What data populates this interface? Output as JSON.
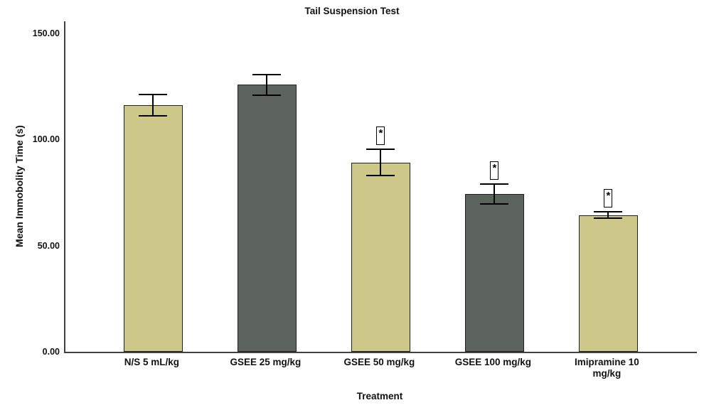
{
  "chart_data": {
    "type": "bar",
    "title": "Tail Suspension Test",
    "xlabel": "Treatment",
    "ylabel": "Mean Immobolity Time (s)",
    "categories": [
      "N/S 5 mL/kg",
      "GSEE 25 mg/kg",
      "GSEE 50 mg/kg",
      "GSEE 100 mg/kg",
      "Imipramine 10\nmg/kg"
    ],
    "values": [
      116.2,
      125.8,
      89.2,
      74.4,
      64.4
    ],
    "errors": [
      4.9,
      4.8,
      6.2,
      4.7,
      1.5
    ],
    "significance": [
      false,
      false,
      true,
      true,
      true
    ],
    "sig_symbol": "*",
    "bar_colors": [
      "#cdc88a",
      "#5b635c",
      "#cdc88a",
      "#5b635c",
      "#cdc88a"
    ],
    "axis_color": "#404040",
    "ylim": [
      0,
      150
    ],
    "yticks": [
      {
        "value": 150,
        "label": "150.00"
      },
      {
        "value": 100,
        "label": "100.00"
      },
      {
        "value": 50,
        "label": "50.00"
      },
      {
        "value": 0,
        "label": "0.00"
      }
    ],
    "legend": "none",
    "grid": false
  }
}
